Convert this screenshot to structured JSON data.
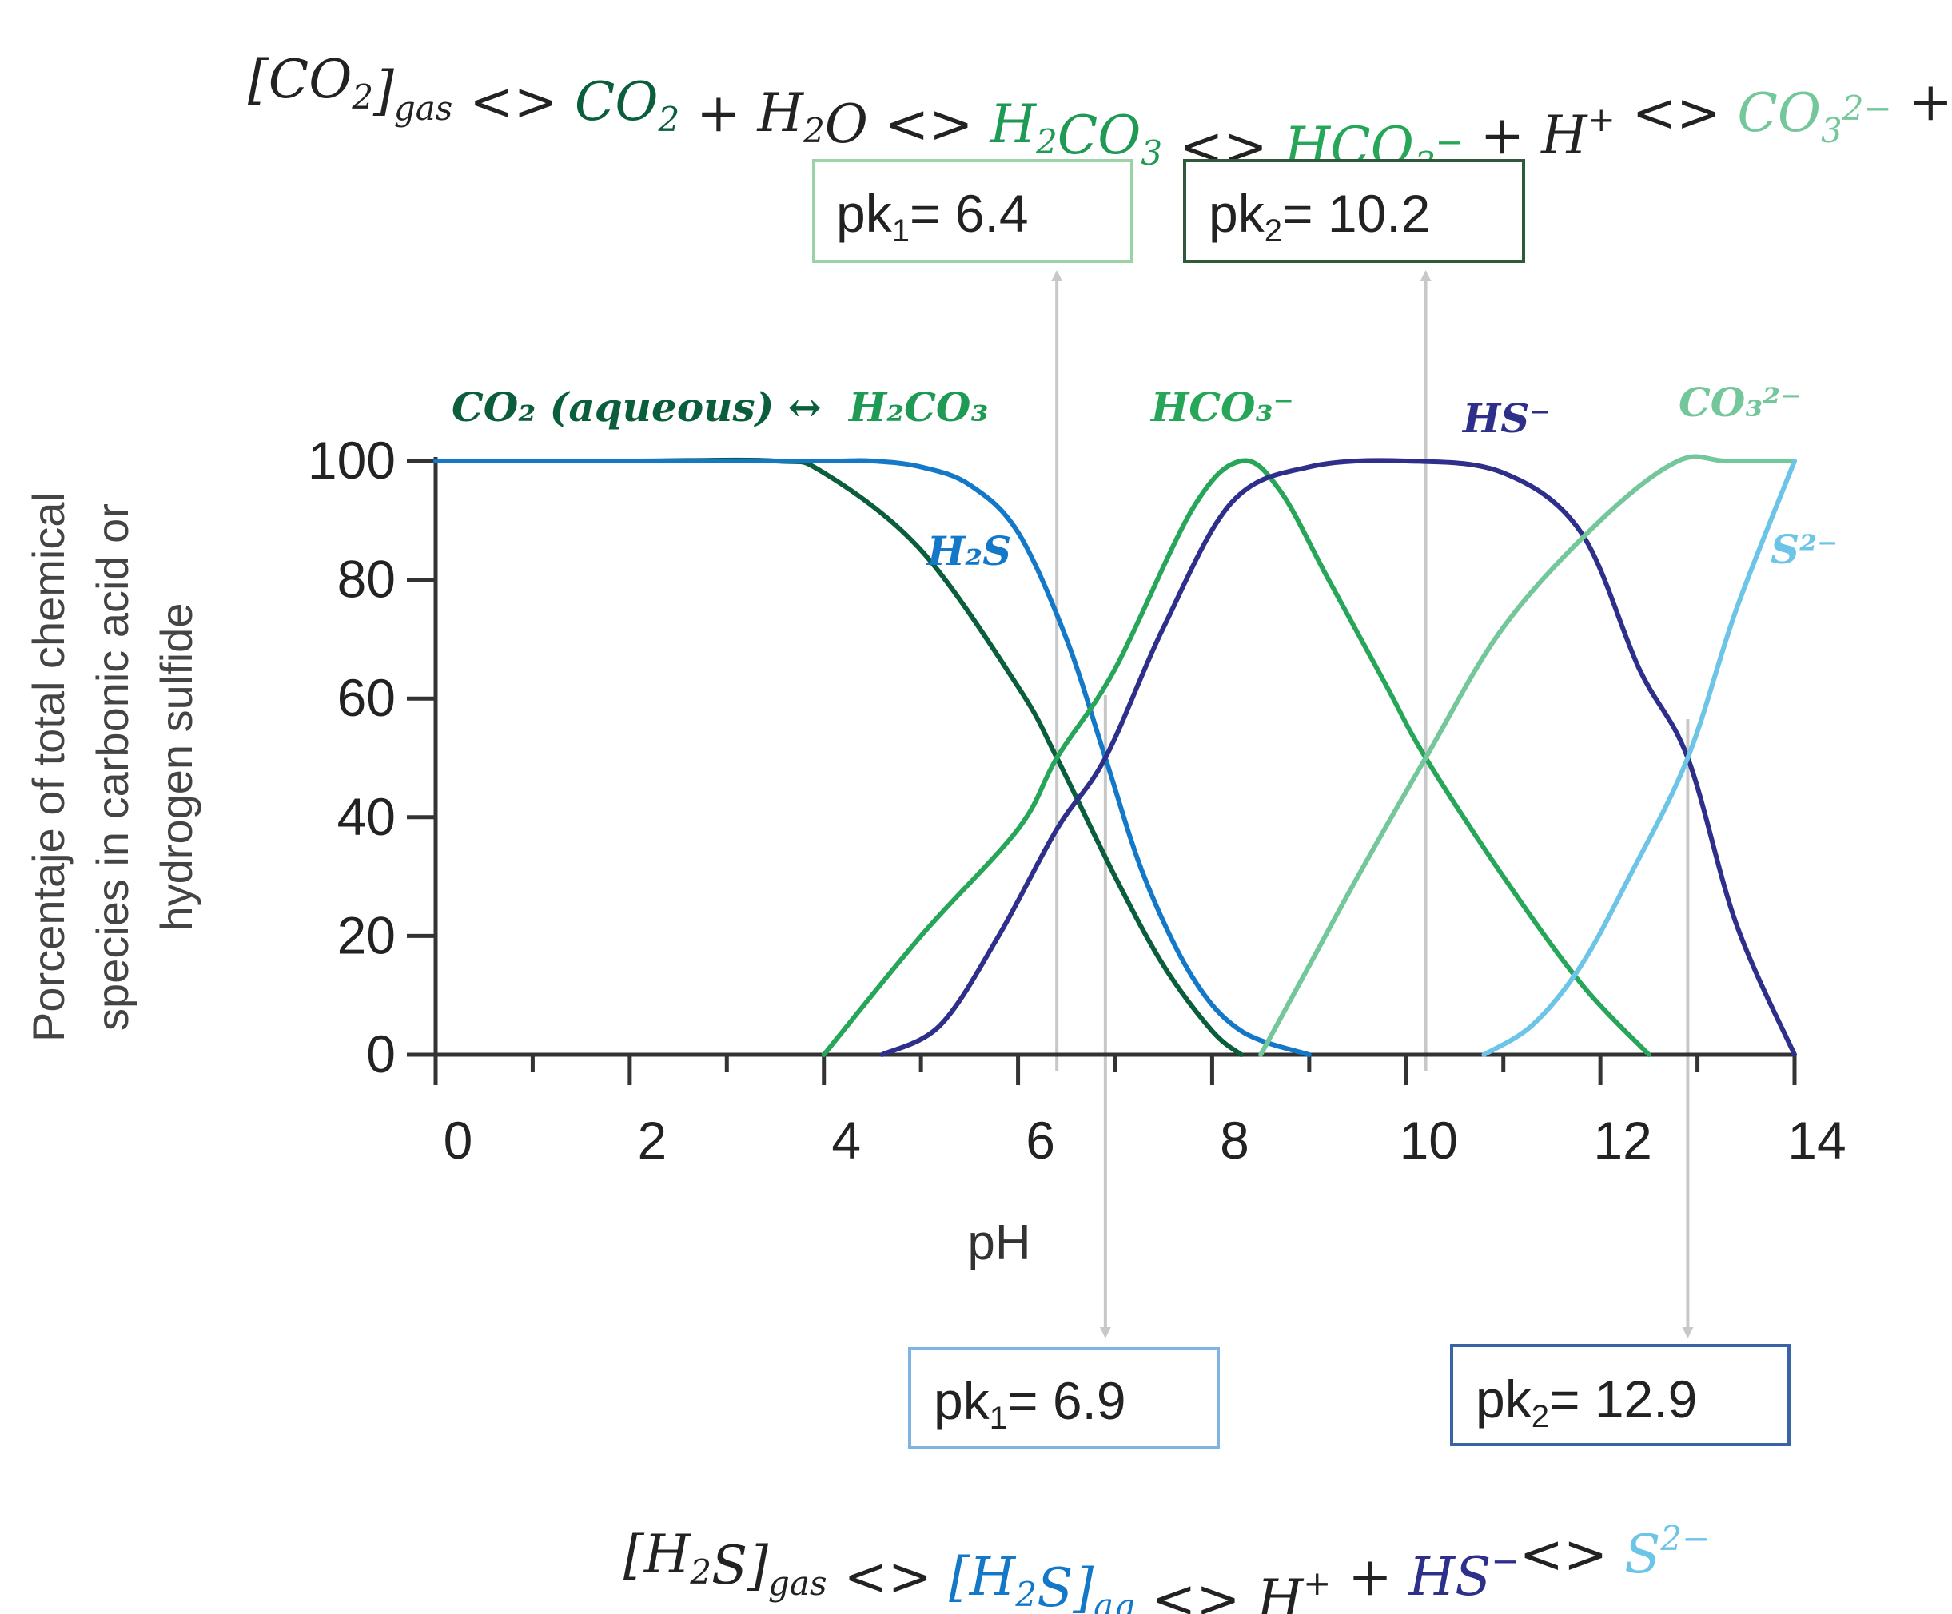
{
  "colors": {
    "co2_aq": "#0b5e3c",
    "h2co3": "#1e9a55",
    "hco3": "#27a65a",
    "co3": "#74c79a",
    "h2s": "#1478c8",
    "hs": "#2e2f8a",
    "s2": "#6cc4e6",
    "black": "#222222",
    "pk_top_1_border": "#9bd3a6",
    "pk_top_2_border": "#2f5a3a",
    "pk_bottom_1_border": "#7fb3e0",
    "pk_bottom_2_border": "#3a62a6",
    "arrow": "#c8c8c8"
  },
  "equations": {
    "carbonate": [
      {
        "text": "[CO",
        "sub": "2",
        "sup": "",
        "tail": "]",
        "tail_sub": "gas",
        "color": "black"
      },
      {
        "text": " <> ",
        "color": "black"
      },
      {
        "text": "CO",
        "sub": "2",
        "color": "co2_aq"
      },
      {
        "text": " + H",
        "sub": "2",
        "color": "black"
      },
      {
        "text": "O <> ",
        "color": "black"
      },
      {
        "text": " H",
        "sub": "2",
        "color": "h2co3"
      },
      {
        "text": "CO",
        "sub": "3",
        "color": "h2co3"
      },
      {
        "text": " <> ",
        "color": "black"
      },
      {
        "text": "HCO",
        "sub": "3",
        "sup": "−",
        "color": "hco3"
      },
      {
        "text": " + H",
        "sup": "+",
        "color": "black"
      },
      {
        "text": " <> ",
        "color": "black"
      },
      {
        "text": "CO",
        "sub": "3",
        "sup": "2−",
        "color": "co3"
      },
      {
        "text": " + H",
        "sup": "+",
        "color": "black"
      }
    ],
    "sulfide": [
      {
        "text": "[H",
        "sub": "2",
        "color": "black"
      },
      {
        "text": "S]",
        "sub": "gas",
        "color": "black"
      },
      {
        "text": " <> ",
        "color": "black"
      },
      {
        "text": "[H",
        "sub": "2",
        "color": "h2s"
      },
      {
        "text": "S]",
        "sub": "aq",
        "color": "h2s"
      },
      {
        "text": " <> H",
        "sup": "+",
        "color": "black"
      },
      {
        "text": " + ",
        "color": "black"
      },
      {
        "text": "HS",
        "sup": "−",
        "color": "hs"
      },
      {
        "text": "<> ",
        "color": "black"
      },
      {
        "text": "S",
        "sup": "2−",
        "color": "s2"
      }
    ]
  },
  "pk_boxes": {
    "top_1": {
      "label": "pk",
      "sub": "1",
      "value": "=  6.4",
      "ph": 6.4
    },
    "top_2": {
      "label": "pk",
      "sub": "2",
      "value": "=  10.2",
      "ph": 10.2
    },
    "bottom_1": {
      "label": "pk",
      "sub": "1",
      "value": "= 6.9",
      "ph": 6.9
    },
    "bottom_2": {
      "label": "pk",
      "sub": "2",
      "value": "= 12.9",
      "ph": 12.9
    }
  },
  "chart_data": {
    "type": "line",
    "title": "",
    "xlabel": "pH",
    "ylabel": "Porcentaje of total chemical species in carbonic acid or hydrogen sulfide",
    "ylabel_lines": [
      "Porcentaje of total chemical",
      "species in carbonic acid or",
      "hydrogen sulfide"
    ],
    "xlim": [
      0,
      14
    ],
    "ylim": [
      0,
      100
    ],
    "xticks": [
      0,
      2,
      4,
      6,
      8,
      10,
      12,
      14
    ],
    "xtick_labels": [
      "0",
      "2",
      "4",
      "6",
      "8",
      "10",
      "12",
      "14"
    ],
    "yticks": [
      0,
      20,
      40,
      60,
      80,
      100
    ],
    "ytick_labels": [
      "0",
      "20",
      "40",
      "60",
      "80",
      "100"
    ],
    "grid": false,
    "series": [
      {
        "name": "CO₂ (aqueous) ↔ H₂CO₃",
        "color": "co2_aq",
        "x": [
          0,
          2,
          3.5,
          4,
          5,
          6,
          6.4,
          7,
          7.5,
          8,
          8.3
        ],
        "y": [
          100,
          100,
          100,
          98,
          85,
          62,
          50,
          30,
          15,
          4,
          0
        ]
      },
      {
        "name": "H₂S",
        "color": "h2s",
        "x": [
          0,
          2,
          4,
          4.5,
          5,
          5.5,
          6,
          6.5,
          6.9,
          7.3,
          7.8,
          8.3,
          9
        ],
        "y": [
          100,
          100,
          100,
          100,
          99,
          96,
          88,
          70,
          50,
          30,
          13,
          4,
          0
        ]
      },
      {
        "name": "HCO₃⁻",
        "color": "hco3",
        "x": [
          4,
          5,
          6,
          6.4,
          7,
          7.8,
          8.3,
          8.7,
          9.2,
          9.8,
          10.2,
          11,
          11.8,
          12.5
        ],
        "y": [
          0,
          20,
          38,
          50,
          65,
          92,
          100,
          95,
          80,
          62,
          50,
          30,
          12,
          0
        ]
      },
      {
        "name": "HS⁻",
        "color": "hs",
        "x": [
          4.6,
          5.2,
          5.8,
          6.4,
          6.9,
          7.5,
          8.2,
          9,
          10,
          11,
          11.8,
          12.4,
          12.9,
          13.4,
          14
        ],
        "y": [
          0,
          5,
          20,
          38,
          50,
          72,
          93,
          99,
          100,
          98,
          88,
          65,
          50,
          22,
          0
        ]
      },
      {
        "name": "CO₃²⁻",
        "color": "co3",
        "x": [
          8.5,
          9,
          9.5,
          10.2,
          11,
          12,
          12.8,
          13.3,
          14
        ],
        "y": [
          0,
          15,
          30,
          50,
          72,
          90,
          100,
          100,
          100
        ]
      },
      {
        "name": "S²⁻",
        "color": "s2",
        "x": [
          10.8,
          11.3,
          11.8,
          12.3,
          12.9,
          13.4,
          14
        ],
        "y": [
          0,
          5,
          15,
          30,
          50,
          75,
          100
        ]
      }
    ],
    "annotations": [
      {
        "text": "CO₂ (aqueous) ↔",
        "color": "co2_aq"
      },
      {
        "text": "H₂CO₃",
        "color": "h2co3"
      },
      {
        "text": "HCO₃⁻",
        "color": "hco3"
      },
      {
        "text": "HS⁻",
        "color": "hs"
      },
      {
        "text": "CO₃²⁻",
        "color": "co3"
      },
      {
        "text": "H₂S",
        "color": "h2s"
      },
      {
        "text": "S²⁻",
        "color": "s2"
      }
    ]
  }
}
